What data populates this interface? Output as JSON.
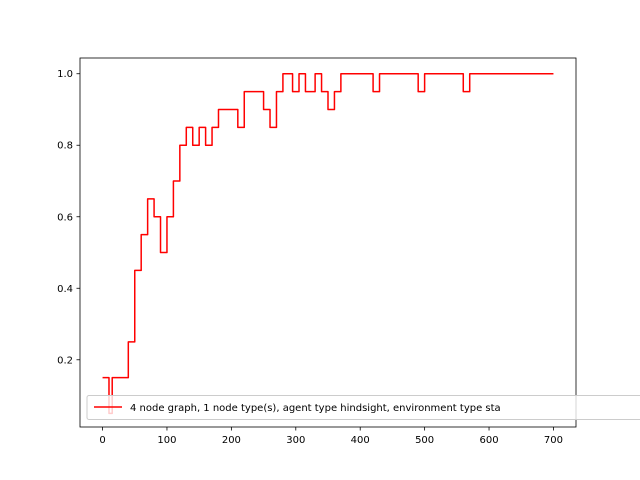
{
  "chart_data": {
    "type": "line",
    "title": "",
    "xlabel": "",
    "ylabel": "",
    "xlim": [
      -35,
      735
    ],
    "ylim": [
      0.012,
      1.044
    ],
    "xticks": [
      0,
      100,
      200,
      300,
      400,
      500,
      600,
      700
    ],
    "yticks": [
      0.2,
      0.4,
      0.6,
      0.8,
      1.0
    ],
    "xtick_labels": [
      "0",
      "100",
      "200",
      "300",
      "400",
      "500",
      "600",
      "700"
    ],
    "ytick_labels": [
      "0.2",
      "0.4",
      "0.6",
      "0.8",
      "1.0"
    ],
    "grid": false,
    "legend_placement": "lower-left",
    "series": [
      {
        "name": "4 node graph, 1 node type(s), agent type hindsight, environment type sta",
        "color": "#ff0000",
        "step": "post",
        "x": [
          0,
          10,
          15,
          20,
          40,
          50,
          60,
          70,
          80,
          90,
          100,
          110,
          120,
          130,
          140,
          150,
          160,
          170,
          180,
          190,
          210,
          220,
          250,
          260,
          270,
          280,
          295,
          305,
          315,
          330,
          340,
          350,
          360,
          370,
          380,
          420,
          430,
          490,
          500,
          560,
          570,
          700
        ],
        "values": [
          0.15,
          0.05,
          0.15,
          0.15,
          0.25,
          0.45,
          0.55,
          0.65,
          0.6,
          0.5,
          0.6,
          0.7,
          0.8,
          0.85,
          0.8,
          0.85,
          0.8,
          0.85,
          0.9,
          0.9,
          0.85,
          0.95,
          0.9,
          0.85,
          0.95,
          1.0,
          0.95,
          1.0,
          0.95,
          1.0,
          0.95,
          0.9,
          0.95,
          1.0,
          1.0,
          0.95,
          1.0,
          0.95,
          1.0,
          0.95,
          1.0,
          1.0
        ]
      }
    ]
  }
}
